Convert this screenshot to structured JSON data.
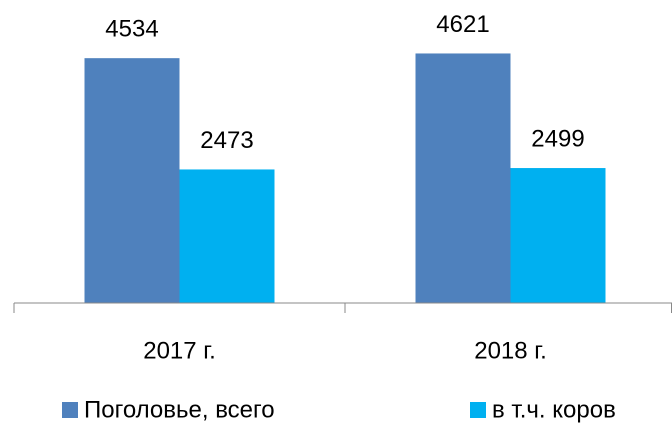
{
  "chart_data": {
    "type": "bar",
    "categories": [
      "2017 г.",
      "2018 г."
    ],
    "series": [
      {
        "name": "Поголовье, всего",
        "color": "#4f81bd",
        "values": [
          4534,
          4621
        ]
      },
      {
        "name": "в т.ч. коров",
        "color": "#00b0f0",
        "values": [
          2473,
          2499
        ]
      }
    ],
    "ylim": [
      0,
      5000
    ]
  }
}
